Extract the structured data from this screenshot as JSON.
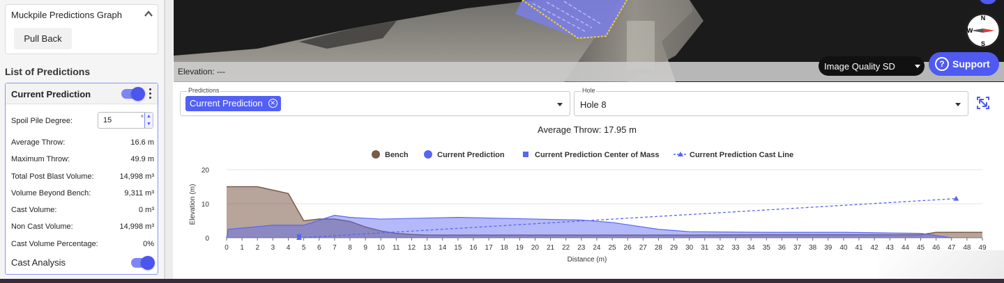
{
  "sidebar": {
    "graph_card": {
      "title": "Muckpile Predictions Graph",
      "pull_back": "Pull Back"
    },
    "list_title": "List of Predictions",
    "prediction": {
      "name": "Current Prediction",
      "enabled": true,
      "spoil_label": "Spoil Pile Degree:",
      "spoil_value": "15",
      "spoil_unit": "°",
      "stats": [
        {
          "label": "Average Throw:",
          "value": "16.6 m"
        },
        {
          "label": "Maximum Throw:",
          "value": "49.9 m"
        },
        {
          "label": "Total Post Blast Volume:",
          "value": "14,998 m³"
        },
        {
          "label": "Volume Beyond Bench:",
          "value": "9,311 m³"
        },
        {
          "label": "Cast Volume:",
          "value": "0 m³"
        },
        {
          "label": "Non Cast Volume:",
          "value": "14,998 m³"
        },
        {
          "label": "Cast Volume Percentage:",
          "value": "0%"
        }
      ],
      "cast_analysis": "Cast Analysis",
      "cast_enabled": true
    }
  },
  "view3d": {
    "elevation": "Elevation: ---",
    "image_quality": "Image Quality SD",
    "support": "Support",
    "compass": {
      "n": "N",
      "s": "S",
      "w": "W"
    }
  },
  "filters": {
    "predictions_label": "Predictions",
    "predictions_chip": "Current Prediction",
    "hole_label": "Hole",
    "hole_value": "Hole 8"
  },
  "chart_data": {
    "type": "area",
    "title": "Average Throw: 17.95 m",
    "xlabel": "Distance (m)",
    "ylabel": "Elevation (m)",
    "xlim": [
      0,
      49
    ],
    "ylim": [
      0,
      20
    ],
    "yticks": [
      0,
      10,
      20
    ],
    "grid": true,
    "legend_position": "top-center",
    "legend": [
      "Bench",
      "Current Prediction",
      "Current Prediction Center of Mass",
      "Current Prediction Cast Line"
    ],
    "colors": {
      "bench": "#7b5a48",
      "prediction": "#5965f2",
      "cast_line": "#5965f2"
    },
    "series": [
      {
        "name": "Bench",
        "x": [
          0,
          1,
          2,
          3,
          4,
          5,
          6,
          7,
          8,
          9,
          10,
          11,
          12,
          13,
          14,
          15,
          20,
          25,
          30,
          35,
          40,
          45,
          46,
          49
        ],
        "y": [
          15,
          15,
          15,
          14,
          13,
          5,
          5.5,
          5.5,
          4.8,
          3.2,
          2,
          1.3,
          1,
          0.8,
          0.8,
          0.8,
          0.8,
          0.8,
          0.8,
          0.9,
          0.9,
          0.9,
          1.6,
          1.6
        ]
      },
      {
        "name": "Current Prediction",
        "x": [
          0,
          0.1,
          3,
          5,
          7,
          8,
          10,
          15,
          20,
          23,
          25,
          28,
          30,
          35,
          40,
          45,
          47
        ],
        "y": [
          0,
          2.5,
          3.7,
          3.7,
          6.6,
          6,
          5.5,
          6,
          5.5,
          5.2,
          4.5,
          2.5,
          1.8,
          1.6,
          1.6,
          1.3,
          0
        ]
      },
      {
        "name": "Current Prediction Center of Mass",
        "x": [
          4.7
        ],
        "y": [
          0.5
        ]
      },
      {
        "name": "Current Prediction Cast Line",
        "x": [
          4.7,
          47.3
        ],
        "y": [
          0,
          11.5
        ]
      }
    ]
  }
}
